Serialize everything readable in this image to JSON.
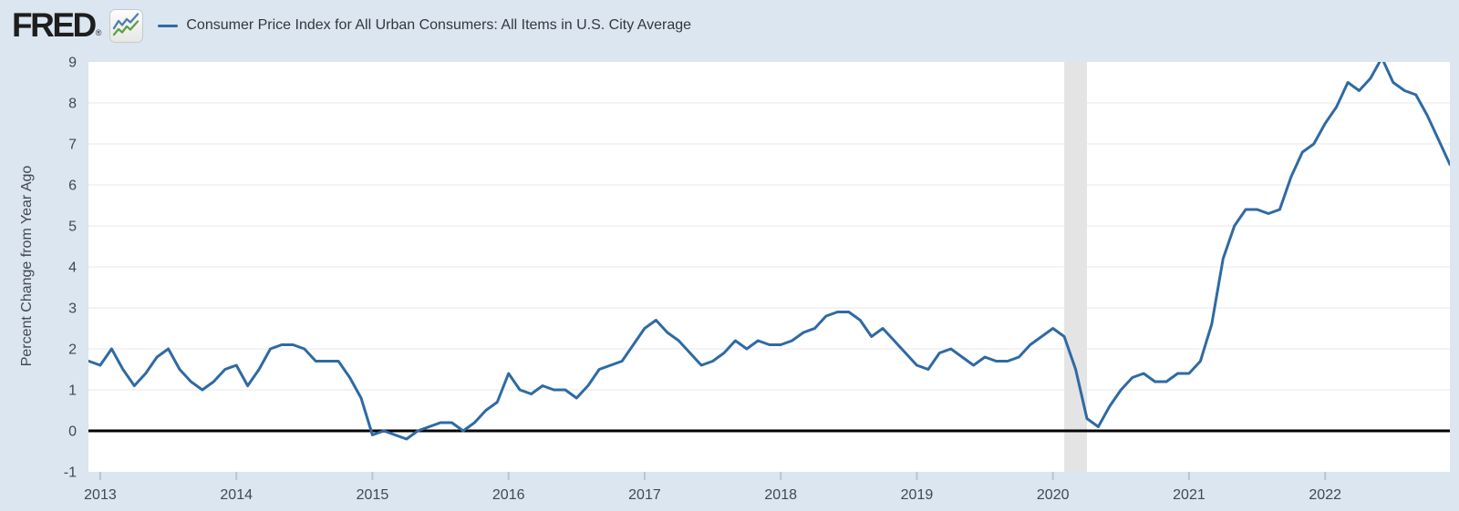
{
  "header": {
    "logo_text": "FRED",
    "registered_mark": "®",
    "legend_label": "Consumer Price Index for All Urban Consumers: All Items in U.S. City Average"
  },
  "colors": {
    "page_bg": "#dbe6f1",
    "plot_bg": "#ffffff",
    "gridline": "#e7e7e7",
    "zero_line": "#000000",
    "recession_band": "#e4e4e4",
    "axis_text": "#424851",
    "tick_mark": "#b9c5d2",
    "line": "#2f6aa3",
    "logo_icon_blue": "#4e7fae",
    "logo_icon_green": "#5fa044"
  },
  "chart_data": {
    "type": "line",
    "title": "Consumer Price Index for All Urban Consumers: All Items in U.S. City Average",
    "ylabel": "Percent Change from Year Ago",
    "frequency": "monthly",
    "x_start": "2012-12",
    "x_end": "2022-12",
    "ylim": [
      -1,
      9
    ],
    "y_ticks": [
      -1,
      0,
      1,
      2,
      3,
      4,
      5,
      6,
      7,
      8,
      9
    ],
    "x_tick_labels": [
      "2013",
      "2014",
      "2015",
      "2016",
      "2017",
      "2018",
      "2019",
      "2020",
      "2021",
      "2022"
    ],
    "grid": "horizontal",
    "legend_position": "top",
    "zero_baseline": true,
    "recession_band": {
      "start": "2020-02",
      "end": "2020-04"
    },
    "series": [
      {
        "name": "Consumer Price Index for All Urban Consumers: All Items in U.S. City Average",
        "color": "#2f6aa3",
        "values": [
          1.7,
          1.6,
          2.0,
          1.5,
          1.1,
          1.4,
          1.8,
          2.0,
          1.5,
          1.2,
          1.0,
          1.2,
          1.5,
          1.6,
          1.1,
          1.5,
          2.0,
          2.1,
          2.1,
          2.0,
          1.7,
          1.7,
          1.7,
          1.3,
          0.8,
          -0.1,
          0.0,
          -0.1,
          -0.2,
          0.0,
          0.1,
          0.2,
          0.2,
          0.0,
          0.2,
          0.5,
          0.7,
          1.4,
          1.0,
          0.9,
          1.1,
          1.0,
          1.0,
          0.8,
          1.1,
          1.5,
          1.6,
          1.7,
          2.1,
          2.5,
          2.7,
          2.4,
          2.2,
          1.9,
          1.6,
          1.7,
          1.9,
          2.2,
          2.0,
          2.2,
          2.1,
          2.1,
          2.2,
          2.4,
          2.5,
          2.8,
          2.9,
          2.9,
          2.7,
          2.3,
          2.5,
          2.2,
          1.9,
          1.6,
          1.5,
          1.9,
          2.0,
          1.8,
          1.6,
          1.8,
          1.7,
          1.7,
          1.8,
          2.1,
          2.3,
          2.5,
          2.3,
          1.5,
          0.3,
          0.1,
          0.6,
          1.0,
          1.3,
          1.4,
          1.2,
          1.2,
          1.4,
          1.4,
          1.7,
          2.6,
          4.2,
          5.0,
          5.4,
          5.4,
          5.3,
          5.4,
          6.2,
          6.8,
          7.0,
          7.5,
          7.9,
          8.5,
          8.3,
          8.6,
          9.1,
          8.5,
          8.3,
          8.2,
          7.7,
          7.1,
          6.5
        ]
      }
    ]
  }
}
